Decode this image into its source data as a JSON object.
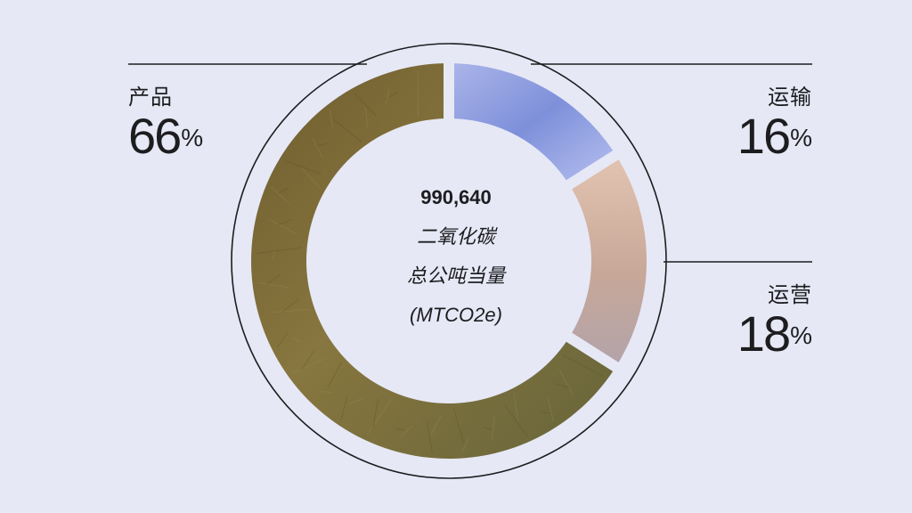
{
  "chart_data": {
    "type": "pie",
    "title": "",
    "center": {
      "total": "990,640",
      "line1": "二氧化碳",
      "line2": "总公吨当量",
      "line3": "(MTCO2e)"
    },
    "slices": [
      {
        "name": "运输",
        "value": 16,
        "percent_text": "16",
        "color": "#8f9fdf"
      },
      {
        "name": "运营",
        "value": 18,
        "percent_text": "18",
        "color": "#c9aa98"
      },
      {
        "name": "产品",
        "value": 66,
        "percent_text": "66",
        "color": "#7a6a3c"
      }
    ],
    "percent_sign": "%"
  }
}
